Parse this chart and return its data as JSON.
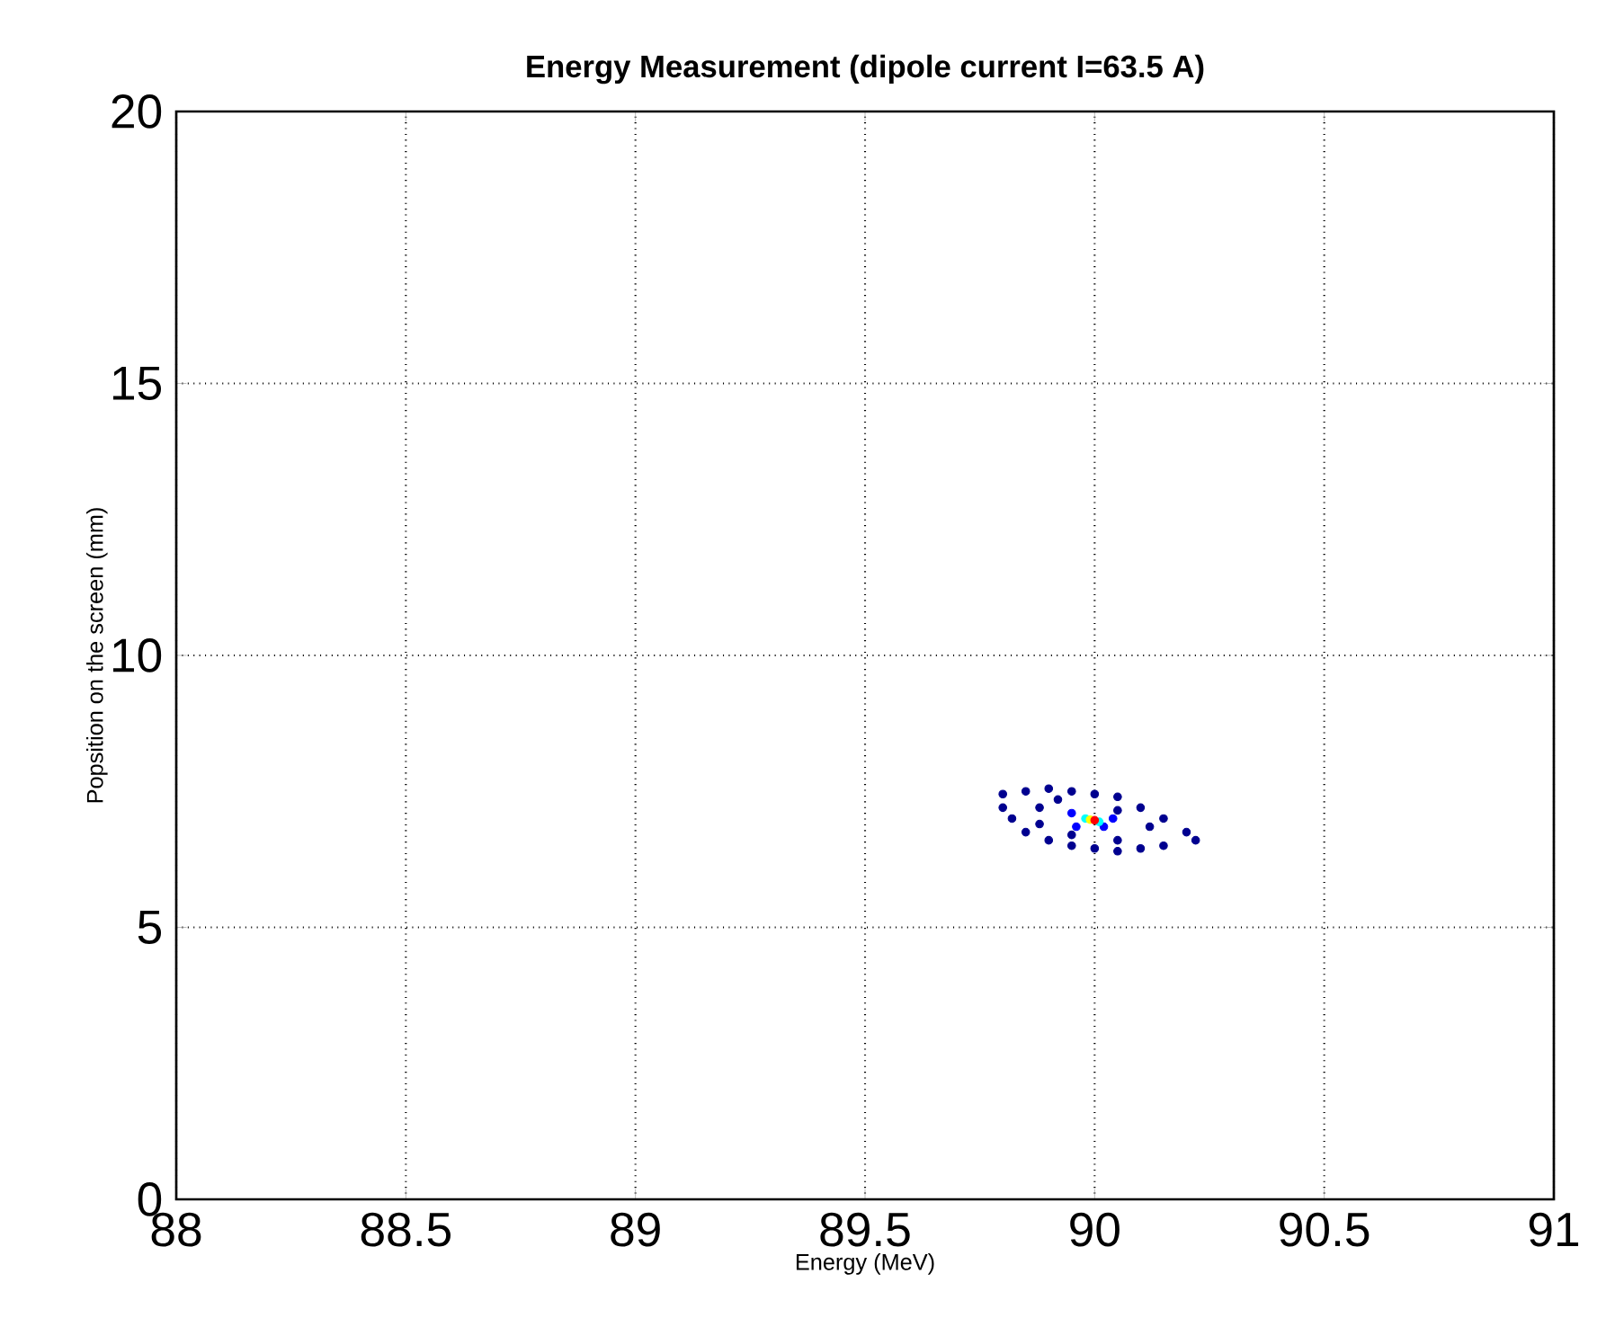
{
  "chart_data": {
    "type": "scatter",
    "title": "Energy Measurement (dipole current I=63.5 A)",
    "xlabel": "Energy (MeV)",
    "ylabel": "Popsition on the screen (mm)",
    "xlim": [
      88,
      91
    ],
    "ylim": [
      0,
      20
    ],
    "xticks": [
      88,
      88.5,
      89,
      89.5,
      90,
      90.5,
      91
    ],
    "yticks": [
      0,
      5,
      10,
      15,
      20
    ],
    "grid": true,
    "marker": "circle",
    "series": [
      {
        "x": [
          89.8,
          89.85,
          89.9,
          89.95,
          90.0,
          90.05,
          90.1,
          90.15,
          90.2,
          90.22,
          90.15,
          90.1,
          90.05,
          90.0,
          89.95,
          89.9,
          89.85,
          89.82,
          89.8,
          89.88,
          89.92,
          90.05,
          90.12,
          89.95,
          90.05,
          89.88,
          89.95,
          90.04,
          89.96,
          90.02,
          89.98,
          90.01,
          89.99,
          90.0
        ],
        "values": [
          7.45,
          7.5,
          7.55,
          7.5,
          7.45,
          7.4,
          7.2,
          7.0,
          6.75,
          6.6,
          6.5,
          6.45,
          6.4,
          6.45,
          6.5,
          6.6,
          6.75,
          7.0,
          7.2,
          7.2,
          7.35,
          7.15,
          6.85,
          6.7,
          6.6,
          6.9,
          7.1,
          7.0,
          6.85,
          6.85,
          7.0,
          6.94,
          6.98,
          6.97
        ],
        "colors": [
          "#00008f",
          "#00008f",
          "#00008f",
          "#00008f",
          "#00008f",
          "#00008f",
          "#00008f",
          "#00008f",
          "#00008f",
          "#00008f",
          "#00008f",
          "#00008f",
          "#00008f",
          "#00008f",
          "#00008f",
          "#00008f",
          "#00008f",
          "#00008f",
          "#00008f",
          "#00008f",
          "#00008f",
          "#00008f",
          "#00008f",
          "#00008f",
          "#00008f",
          "#00008f",
          "#0000ff",
          "#0000ff",
          "#0000ff",
          "#0000ff",
          "#00ffff",
          "#00ffff",
          "#ffff00",
          "#ff0000"
        ]
      }
    ]
  }
}
